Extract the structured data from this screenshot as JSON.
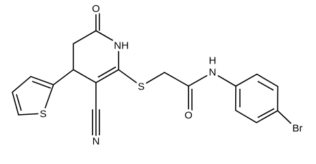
{
  "atoms": [
    "O",
    "NH",
    "S",
    "N",
    "S",
    "O",
    "H",
    "N",
    "Br"
  ]
}
